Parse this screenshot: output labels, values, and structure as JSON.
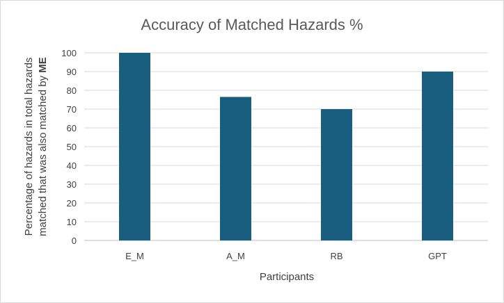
{
  "chart_data": {
    "type": "bar",
    "title": "Accuracy of Matched Hazards %",
    "xlabel": "Participants",
    "ylabel_line1": "Percentage of hazards in total hazards",
    "ylabel_line2_prefix": "matched that was also matched by ",
    "ylabel_line2_bold": "ME",
    "categories": [
      "E_M",
      "A_M",
      "RB",
      "GPT"
    ],
    "values": [
      100,
      76.5,
      70,
      90
    ],
    "ylim": [
      0,
      100
    ],
    "yticks": [
      0,
      10,
      20,
      30,
      40,
      50,
      60,
      70,
      80,
      90,
      100
    ],
    "grid": true,
    "bar_color": "#1a5e7f"
  }
}
